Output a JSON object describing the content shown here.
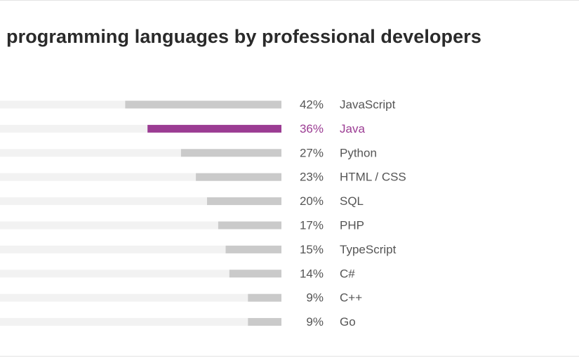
{
  "chart_data": {
    "type": "bar",
    "orientation": "horizontal",
    "title": "programming languages by professional developers",
    "categories": [
      "JavaScript",
      "Java",
      "Python",
      "HTML / CSS",
      "SQL",
      "PHP",
      "TypeScript",
      "C#",
      "C++",
      "Go"
    ],
    "values": [
      42,
      36,
      27,
      23,
      20,
      17,
      15,
      14,
      9,
      9
    ],
    "value_labels": [
      "42%",
      "36%",
      "27%",
      "23%",
      "20%",
      "17%",
      "15%",
      "14%",
      "9%",
      "9%"
    ],
    "unit": "%",
    "highlight": "Java",
    "grid": false,
    "legend": "none"
  },
  "colors": {
    "bar": "#cacaca",
    "track": "#f2f2f2",
    "highlight": "#9b3c93",
    "label": "#555555",
    "title": "#2a2a2a"
  }
}
